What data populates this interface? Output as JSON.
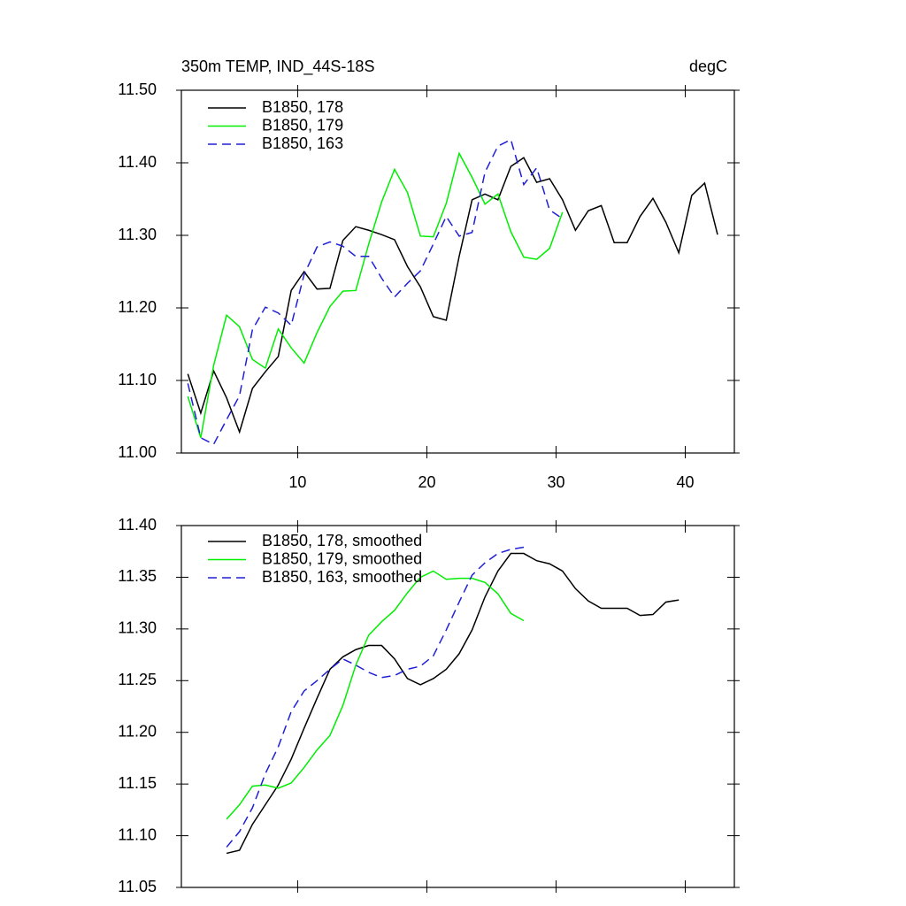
{
  "chart_data": [
    {
      "type": "line",
      "title": "350m TEMP, IND_44S-18S",
      "subtitle": "degC",
      "x": [
        1.5,
        2.5,
        3.5,
        4.5,
        5.5,
        6.5,
        7.5,
        8.5,
        9.5,
        10.5,
        11.5,
        12.5,
        13.5,
        14.5,
        15.5,
        16.5,
        17.5,
        18.5,
        19.5,
        20.5,
        21.5,
        22.5,
        23.5,
        24.5,
        25.5,
        26.5,
        27.5,
        28.5,
        29.5,
        30.5,
        31.5,
        32.5,
        33.5,
        34.5,
        35.5,
        36.5,
        37.5,
        38.5,
        39.5,
        40.5,
        41.5,
        42.5
      ],
      "series": [
        {
          "name": "B1850, 178",
          "color": "#000000",
          "dashed": false,
          "values": [
            11.109,
            11.055,
            11.113,
            11.076,
            11.029,
            11.089,
            11.112,
            11.133,
            11.224,
            11.25,
            11.226,
            11.227,
            11.293,
            11.312,
            11.307,
            11.301,
            11.294,
            11.257,
            11.229,
            11.188,
            11.183,
            11.271,
            11.349,
            11.357,
            11.349,
            11.395,
            11.407,
            11.373,
            11.378,
            11.349,
            11.307,
            11.334,
            11.341,
            11.29,
            11.29,
            11.326,
            11.351,
            11.318,
            11.276,
            11.355,
            11.372,
            11.301
          ]
        },
        {
          "name": "B1850, 179",
          "color": "#00ee00",
          "dashed": false,
          "values": [
            11.078,
            11.021,
            11.121,
            11.19,
            11.174,
            11.129,
            11.117,
            11.171,
            11.145,
            11.124,
            11.166,
            11.202,
            11.223,
            11.224,
            11.288,
            11.346,
            11.391,
            11.359,
            11.299,
            11.298,
            11.344,
            11.413,
            11.38,
            11.343,
            11.357,
            11.305,
            11.27,
            11.267,
            11.282,
            11.332,
            null,
            null,
            null,
            null,
            null,
            null,
            null,
            null,
            null,
            null,
            null,
            null
          ]
        },
        {
          "name": "B1850, 163",
          "color": "#1f1fd6",
          "dashed": true,
          "values": [
            11.096,
            11.021,
            11.012,
            11.046,
            11.079,
            11.17,
            11.201,
            11.193,
            11.176,
            11.246,
            11.284,
            11.291,
            11.285,
            11.271,
            11.271,
            11.241,
            11.215,
            11.234,
            11.251,
            11.288,
            11.326,
            11.299,
            11.304,
            11.387,
            11.423,
            11.432,
            11.37,
            11.393,
            11.335,
            11.323,
            null,
            null,
            null,
            null,
            null,
            null,
            null,
            null,
            null,
            null,
            null,
            null
          ]
        }
      ],
      "xlim": [
        1,
        43.8
      ],
      "xticks": [
        10,
        20,
        30,
        40
      ],
      "ylim": [
        11.0,
        11.5
      ],
      "yticks": [
        {
          "value": 11.0,
          "label": "11.00"
        },
        {
          "value": 11.1,
          "label": "11.10"
        },
        {
          "value": 11.2,
          "label": "11.20"
        },
        {
          "value": 11.3,
          "label": "11.30"
        },
        {
          "value": 11.4,
          "label": "11.40"
        },
        {
          "value": 11.5,
          "label": "11.50"
        }
      ]
    },
    {
      "type": "line",
      "x": [
        4.5,
        5.5,
        6.5,
        7.5,
        8.5,
        9.5,
        10.5,
        11.5,
        12.5,
        13.5,
        14.5,
        15.5,
        16.5,
        17.5,
        18.5,
        19.5,
        20.5,
        21.5,
        22.5,
        23.5,
        24.5,
        25.5,
        26.5,
        27.5,
        28.5,
        29.5,
        30.5,
        31.5,
        32.5,
        33.5,
        34.5,
        35.5,
        36.5,
        37.5,
        38.5,
        39.5
      ],
      "series": [
        {
          "name": "B1850, 178, smoothed",
          "color": "#000000",
          "dashed": false,
          "values": [
            11.083,
            11.086,
            11.111,
            11.13,
            11.149,
            11.174,
            11.204,
            11.233,
            11.261,
            11.273,
            11.28,
            11.284,
            11.284,
            11.271,
            11.252,
            11.246,
            11.252,
            11.261,
            11.276,
            11.299,
            11.331,
            11.356,
            11.373,
            11.373,
            11.366,
            11.363,
            11.356,
            11.339,
            11.327,
            11.32,
            11.32,
            11.32,
            11.313,
            11.314,
            11.326,
            11.328
          ]
        },
        {
          "name": "B1850, 179, smoothed",
          "color": "#00ee00",
          "dashed": false,
          "values": [
            11.116,
            11.13,
            11.148,
            11.149,
            11.146,
            11.151,
            11.166,
            11.183,
            11.197,
            11.226,
            11.265,
            11.294,
            11.307,
            11.318,
            11.335,
            11.35,
            11.356,
            11.348,
            11.349,
            11.349,
            11.345,
            11.334,
            11.315,
            11.308,
            null,
            null,
            null,
            null,
            null,
            null,
            null,
            null,
            null,
            null,
            null,
            null
          ]
        },
        {
          "name": "B1850, 163, smoothed",
          "color": "#1f1fd6",
          "dashed": true,
          "values": [
            11.089,
            11.104,
            11.127,
            11.16,
            11.186,
            11.22,
            11.24,
            11.25,
            11.261,
            11.271,
            11.265,
            11.258,
            11.253,
            11.255,
            11.261,
            11.264,
            11.274,
            11.299,
            11.326,
            11.352,
            11.364,
            11.373,
            11.377,
            11.379,
            null,
            null,
            null,
            null,
            null,
            null,
            null,
            null,
            null,
            null,
            null,
            null
          ]
        }
      ],
      "xlim": [
        1,
        43.8
      ],
      "xticks": [
        10,
        20,
        30,
        40
      ],
      "ylim": [
        11.05,
        11.4
      ],
      "yticks": [
        11.05,
        {
          "value": 11.1,
          "label": "11.10"
        },
        11.15,
        {
          "value": 11.2,
          "label": "11.20"
        },
        11.25,
        {
          "value": 11.3,
          "label": "11.30"
        },
        11.35,
        {
          "value": 11.4,
          "label": "11.40"
        }
      ]
    }
  ]
}
